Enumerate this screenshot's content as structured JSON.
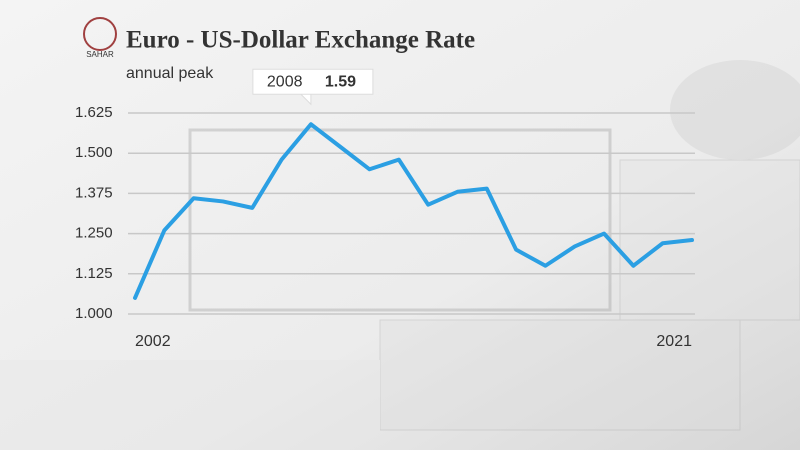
{
  "chart_data": {
    "type": "line",
    "title": "Euro - US-Dollar Exchange Rate",
    "subtitle": "annual peak",
    "watermark": "SAHAR",
    "x": [
      2002,
      2003,
      2004,
      2005,
      2006,
      2007,
      2008,
      2009,
      2010,
      2011,
      2012,
      2013,
      2014,
      2015,
      2016,
      2017,
      2018,
      2019,
      2020,
      2021
    ],
    "values": [
      1.05,
      1.26,
      1.36,
      1.35,
      1.33,
      1.48,
      1.59,
      1.52,
      1.45,
      1.48,
      1.34,
      1.38,
      1.39,
      1.2,
      1.15,
      1.21,
      1.25,
      1.15,
      1.22,
      1.23
    ],
    "color": "#2b9fe3",
    "xlim": [
      2002,
      2021
    ],
    "xticks": [
      2002,
      2021
    ],
    "ylim": [
      1,
      1.625
    ],
    "yticks": [
      {
        "value": 1,
        "label": "1.000"
      },
      1.125,
      {
        "value": 1.25,
        "label": "1.250"
      },
      1.375,
      {
        "value": 1.5,
        "label": "1.500"
      },
      1.625
    ],
    "grid": true,
    "tooltip": {
      "x": 2008,
      "value": 1.59
    }
  }
}
